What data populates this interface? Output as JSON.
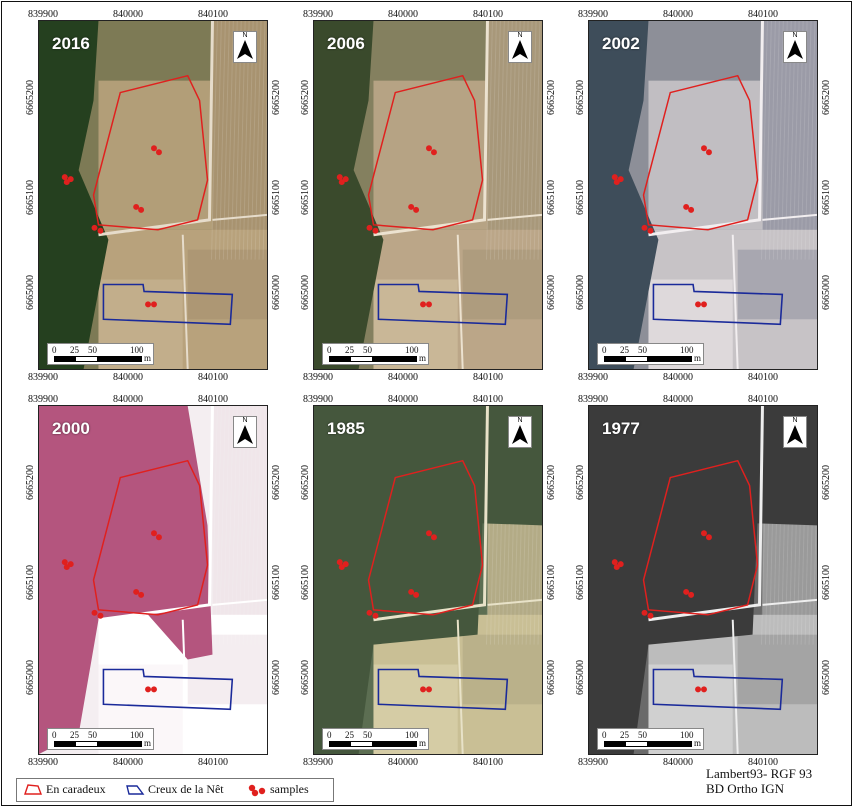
{
  "panels": [
    {
      "year": "2016",
      "style": "color2016"
    },
    {
      "year": "2006",
      "style": "color2006"
    },
    {
      "year": "2002",
      "style": "color2002"
    },
    {
      "year": "2000",
      "style": "infrared"
    },
    {
      "year": "1985",
      "style": "color1985"
    },
    {
      "year": "1977",
      "style": "bw"
    }
  ],
  "axes": {
    "x_ticks": [
      "839900",
      "840000",
      "840100"
    ],
    "y_ticks": [
      "6665200",
      "6665100",
      "6665000"
    ]
  },
  "north_label": "N",
  "scale": {
    "labels": [
      "0",
      "25",
      "50",
      "100"
    ],
    "unit": "m"
  },
  "legend": {
    "items": [
      {
        "label": "En caradeux",
        "color": "#e0201e"
      },
      {
        "label": "Creux de la Nêt",
        "color": "#1a2a9a"
      },
      {
        "label": "samples",
        "color": "#e0201e"
      }
    ]
  },
  "credit": {
    "line1": "Lambert93- RGF 93",
    "line2": "BD Ortho IGN"
  },
  "colors": {
    "en_caradeux": "#e0201e",
    "creux_de_la_net": "#1a2a9a",
    "samples": "#e0201e"
  }
}
